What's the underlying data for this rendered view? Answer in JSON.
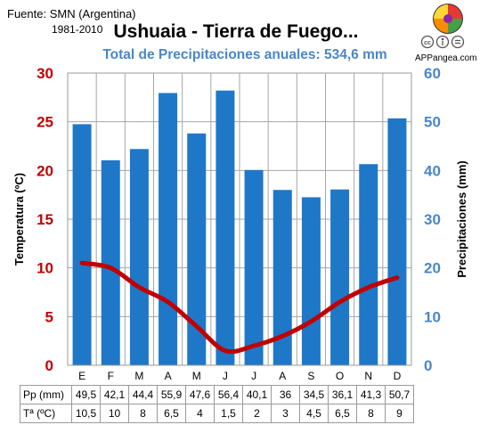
{
  "header": {
    "source": "Fuente: SMN (Argentina)",
    "period": "1981-2010",
    "brand": "APPangea.com"
  },
  "chart_data": {
    "type": "bar+line",
    "title": "Ushuaia - Tierra de Fuego...",
    "subtitle": "Total de Precipitaciones anuales: 534,6 mm",
    "categories": [
      "E",
      "F",
      "M",
      "A",
      "M",
      "J",
      "J",
      "A",
      "S",
      "O",
      "N",
      "D"
    ],
    "series": [
      {
        "name": "Pp (mm)",
        "kind": "bar",
        "axis": "right",
        "values": [
          49.5,
          42.1,
          44.4,
          55.9,
          47.6,
          56.4,
          40.1,
          36,
          34.5,
          36.1,
          41.3,
          50.7
        ],
        "labels": [
          "49,5",
          "42,1",
          "44,4",
          "55,9",
          "47,6",
          "56,4",
          "40,1",
          "36",
          "34,5",
          "36,1",
          "41,3",
          "50,7"
        ],
        "color": "#1f77c8"
      },
      {
        "name": "Tª (ºC)",
        "kind": "line",
        "axis": "left",
        "values": [
          10.5,
          10,
          8,
          6.5,
          4,
          1.5,
          2,
          3,
          4.5,
          6.5,
          8,
          9
        ],
        "labels": [
          "10,5",
          "10",
          "8",
          "6,5",
          "4",
          "1,5",
          "2",
          "3",
          "4,5",
          "6,5",
          "8",
          "9"
        ],
        "color": "#c00000"
      }
    ],
    "yleft": {
      "label": "Temperatura (ºC)",
      "range": [
        0,
        30
      ],
      "ticks": [
        0,
        5,
        10,
        15,
        20,
        25,
        30
      ],
      "color": "#c00000"
    },
    "yright": {
      "label": "Precipitaciones (mm)",
      "range": [
        0,
        60
      ],
      "ticks": [
        0,
        10,
        20,
        30,
        40,
        50,
        60
      ],
      "color": "#4a86c8"
    },
    "grid": true,
    "legend": "none"
  }
}
